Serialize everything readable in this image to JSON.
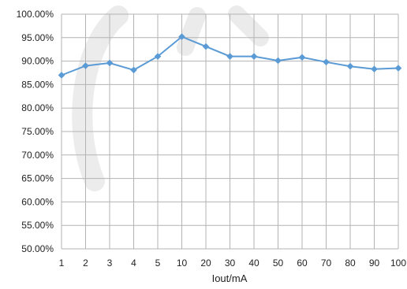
{
  "chart_data": {
    "type": "line",
    "title": "",
    "xlabel": "Iout/mA",
    "ylabel": "",
    "categories": [
      "1",
      "2",
      "3",
      "4",
      "5",
      "10",
      "20",
      "30",
      "40",
      "50",
      "60",
      "70",
      "80",
      "90",
      "100"
    ],
    "series": [
      {
        "name": "",
        "values": [
          87.0,
          89.0,
          89.6,
          88.1,
          91.0,
          95.2,
          93.1,
          91.0,
          91.0,
          90.1,
          90.8,
          89.8,
          88.9,
          88.3,
          88.5
        ]
      }
    ],
    "ylim": [
      50,
      100
    ],
    "yticks": [
      50,
      55,
      60,
      65,
      70,
      75,
      80,
      85,
      90,
      95,
      100
    ],
    "ytick_labels": [
      "50.00%",
      "55.00%",
      "60.00%",
      "65.00%",
      "70.00%",
      "75.00%",
      "80.00%",
      "85.00%",
      "90.00%",
      "95.00%",
      "100.00%"
    ],
    "grid": true,
    "legend": "none",
    "colors": {
      "series": "#5B9BD5",
      "grid": "#b3b3b3",
      "watermark": "#dcdcdc"
    }
  }
}
